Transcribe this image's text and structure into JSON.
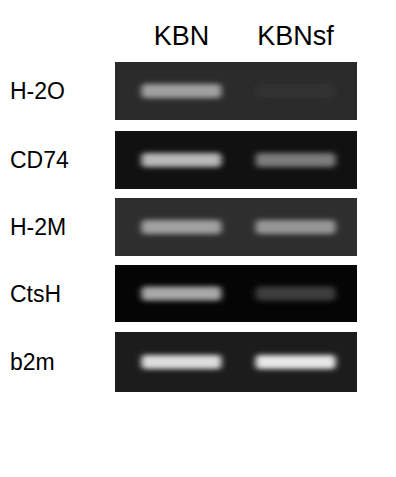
{
  "chart_data": {
    "type": "gel",
    "categories": [
      "KBN",
      "KBNsf"
    ],
    "series": [
      {
        "name": "H-2O",
        "values": [
          55,
          3
        ]
      },
      {
        "name": "CD74",
        "values": [
          70,
          45
        ]
      },
      {
        "name": "H-2M",
        "values": [
          55,
          50
        ]
      },
      {
        "name": "CtsH",
        "values": [
          65,
          22
        ]
      },
      {
        "name": "b2m",
        "values": [
          85,
          90
        ]
      }
    ],
    "color_range": [
      0,
      100
    ],
    "tick_labels": false
  }
}
